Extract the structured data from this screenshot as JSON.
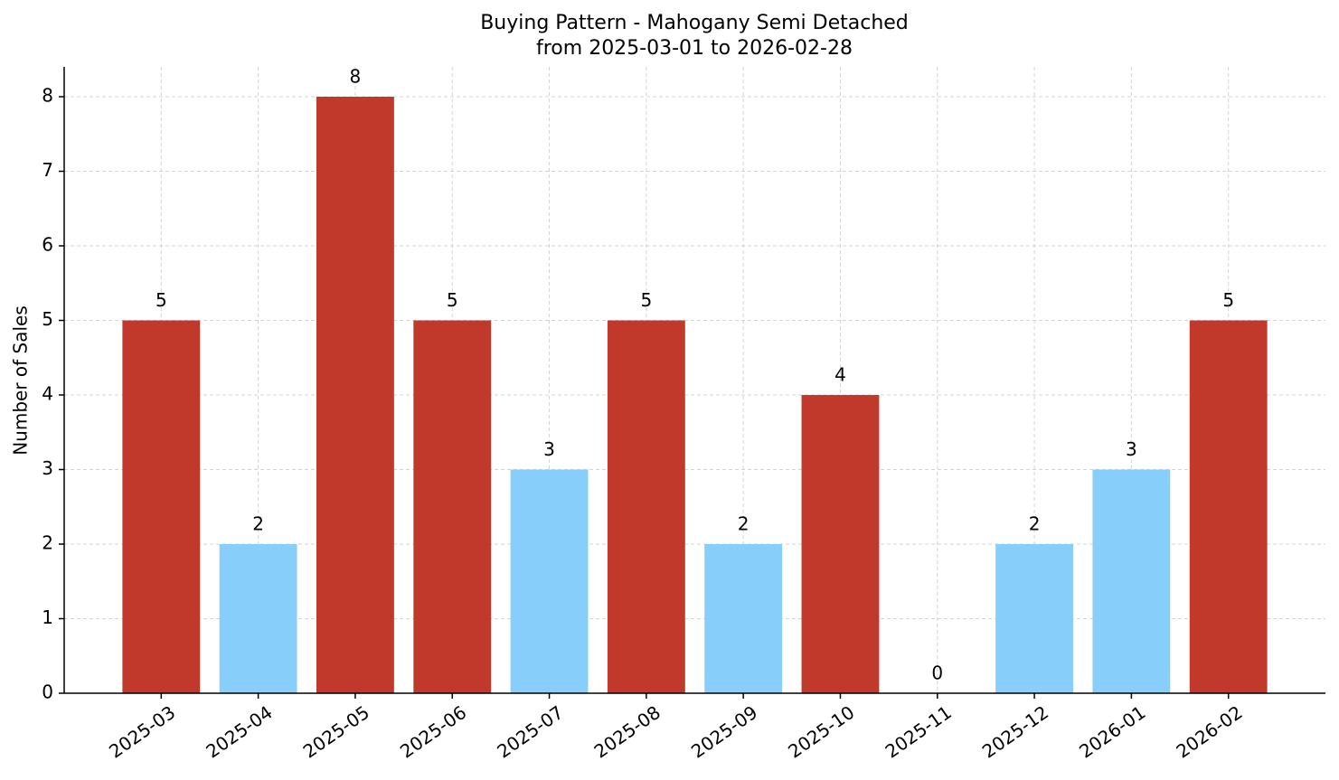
{
  "chart_data": {
    "type": "bar",
    "title": "Buying Pattern - Mahogany Semi Detached",
    "subtitle": "from 2025-03-01 to 2026-02-28",
    "y_label": "Number of Sales",
    "categories": [
      "2025-03",
      "2025-04",
      "2025-05",
      "2025-06",
      "2025-07",
      "2025-08",
      "2025-09",
      "2025-10",
      "2025-11",
      "2025-12",
      "2026-01",
      "2026-02"
    ],
    "values": [
      5,
      2,
      8,
      5,
      3,
      5,
      2,
      4,
      0,
      2,
      3,
      5
    ],
    "colors": [
      "#c0392b",
      "#87cefa",
      "#c0392b",
      "#c0392b",
      "#87cefa",
      "#c0392b",
      "#87cefa",
      "#c0392b",
      "#87cefa",
      "#87cefa",
      "#87cefa",
      "#c0392b"
    ],
    "ylim": [
      0,
      8.4
    ],
    "yticks": [
      0,
      1,
      2,
      3,
      4,
      5,
      6,
      7,
      8
    ],
    "grid": true
  }
}
